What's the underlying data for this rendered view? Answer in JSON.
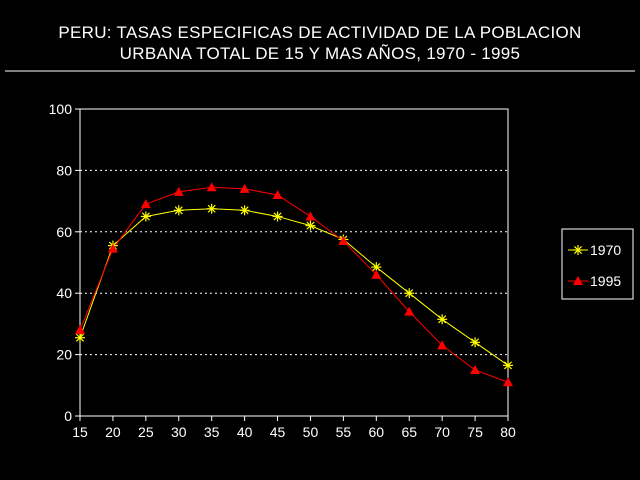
{
  "chart_data": {
    "type": "line",
    "title_lines": [
      "PERU: TASAS ESPECIFICAS DE ACTIVIDAD DE LA POBLACION",
      "URBANA TOTAL DE 15 Y MAS AÑOS, 1970 - 1995"
    ],
    "x": [
      15,
      20,
      25,
      30,
      35,
      40,
      45,
      50,
      55,
      60,
      65,
      70,
      75,
      80
    ],
    "x_tick_labels": [
      "15",
      "20",
      "25",
      "30",
      "35",
      "40",
      "45",
      "50",
      "55",
      "60",
      "65",
      "70",
      "75",
      "80"
    ],
    "y_tick_labels": [
      "0",
      "20",
      "40",
      "60",
      "80",
      "100"
    ],
    "y_ticks": [
      0,
      20,
      40,
      60,
      80,
      100
    ],
    "ylim": [
      0,
      100
    ],
    "xlim": [
      15,
      80
    ],
    "grid": "horizontal dotted",
    "legend_position": "right",
    "series": [
      {
        "name": "1970",
        "marker": "asterisk",
        "color": "#ffff00",
        "values": [
          25.5,
          55.5,
          65,
          67,
          67.5,
          67,
          65,
          62,
          57.5,
          48.5,
          40,
          31.5,
          24,
          16.5
        ]
      },
      {
        "name": "1995",
        "marker": "triangle",
        "color": "#ff0000",
        "values": [
          28,
          54.5,
          69,
          73,
          74.5,
          74,
          72,
          65,
          57,
          46,
          34,
          23,
          15,
          11
        ]
      }
    ]
  },
  "colors": {
    "background": "#000000",
    "text": "#ffffff",
    "axis": "#ffffff",
    "grid": "#ffffff"
  }
}
